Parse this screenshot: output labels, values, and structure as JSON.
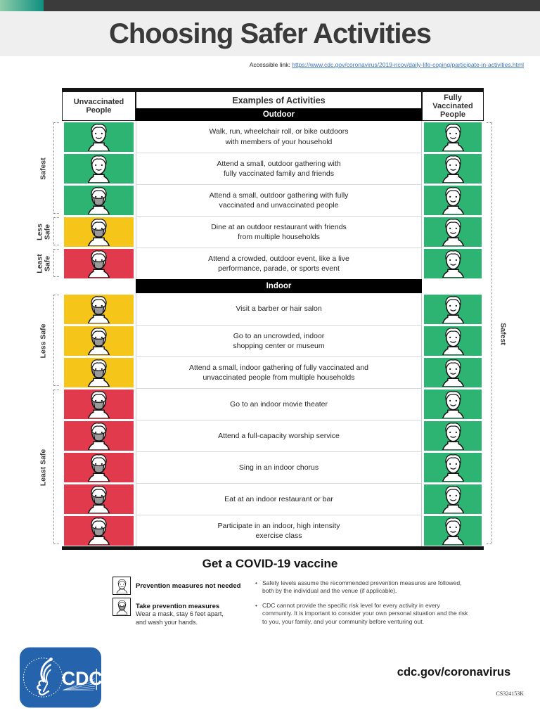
{
  "page": {
    "title": "Choosing Safer Activities",
    "accessible_link_label": "Accessible link:",
    "accessible_link_url": "https://www.cdc.gov/coronavirus/2019-ncov/daily-life-coping/participate-in-activities.html",
    "doc_code": "CS324153K"
  },
  "colors": {
    "green": "#2DB473",
    "yellow": "#F6C51A",
    "red": "#E03A4C",
    "mask_gray": "#9A9A9A",
    "cdc_blue": "#2663AD",
    "orange": "#F6A31C",
    "link_blue": "#3B78BE"
  },
  "table": {
    "col_unvaccinated": "Unvaccinated People",
    "col_examples": "Examples of Activities",
    "col_vaccinated": "Fully Vaccinated People",
    "right_label": "Safest",
    "sections": [
      {
        "banner": "Outdoor",
        "groups": [
          {
            "label": "Safest",
            "span": 3
          },
          {
            "label": "Less Safe",
            "span": 1
          },
          {
            "label": "Least Safe",
            "span": 1
          }
        ],
        "rows": [
          {
            "risk": "green",
            "masked": false,
            "text": "Walk, run, wheelchair roll, or bike outdoors\nwith members of your household"
          },
          {
            "risk": "green",
            "masked": false,
            "text": "Attend a small, outdoor gathering with\nfully vaccinated family and friends"
          },
          {
            "risk": "green",
            "masked": true,
            "text": "Attend a small, outdoor gathering with fully\nvaccinated and unvaccinated people"
          },
          {
            "risk": "yellow",
            "masked": true,
            "text": "Dine at an outdoor restaurant with friends\nfrom multiple households"
          },
          {
            "risk": "red",
            "masked": true,
            "text": "Attend a crowded, outdoor event, like a live\nperformance, parade, or sports event"
          }
        ]
      },
      {
        "banner": "Indoor",
        "groups": [
          {
            "label": "Less Safe",
            "span": 3
          },
          {
            "label": "Least Safe",
            "span": 5
          }
        ],
        "rows": [
          {
            "risk": "yellow",
            "masked": true,
            "text": "Visit a barber or hair salon"
          },
          {
            "risk": "yellow",
            "masked": true,
            "text": "Go to an uncrowded, indoor\nshopping center or museum"
          },
          {
            "risk": "yellow",
            "masked": true,
            "text": "Attend a small, indoor gathering of fully vaccinated and\nunvaccinated people from multiple households"
          },
          {
            "risk": "red",
            "masked": true,
            "text": "Go to an indoor movie theater"
          },
          {
            "risk": "red",
            "masked": true,
            "text": "Attend a full-capacity worship service"
          },
          {
            "risk": "red",
            "masked": true,
            "text": "Sing in an indoor chorus"
          },
          {
            "risk": "red",
            "masked": true,
            "text": "Eat at an indoor restaurant or bar"
          },
          {
            "risk": "red",
            "masked": true,
            "text": "Participate in an indoor, high intensity\nexercise class"
          }
        ]
      }
    ]
  },
  "bottom": {
    "vaccine_heading": "Get a COVID-19 vaccine",
    "legend": [
      {
        "masked": false,
        "title": "Prevention measures not needed",
        "desc": ""
      },
      {
        "masked": true,
        "title": "Take prevention measures",
        "desc": "Wear a mask, stay 6 feet apart,\nand wash your hands."
      }
    ],
    "bullets": [
      "Safety levels assume the recommended prevention measures are followed, both by the individual and the venue (if applicable).",
      "CDC cannot provide the specific risk level for every activity in every community. It is important to consider your own personal situation and the risk to you, your family, and your community before venturing out."
    ]
  },
  "footer": {
    "cdc_logo_label": "CDC",
    "url_banner": "cdc.gov/coronavirus"
  }
}
